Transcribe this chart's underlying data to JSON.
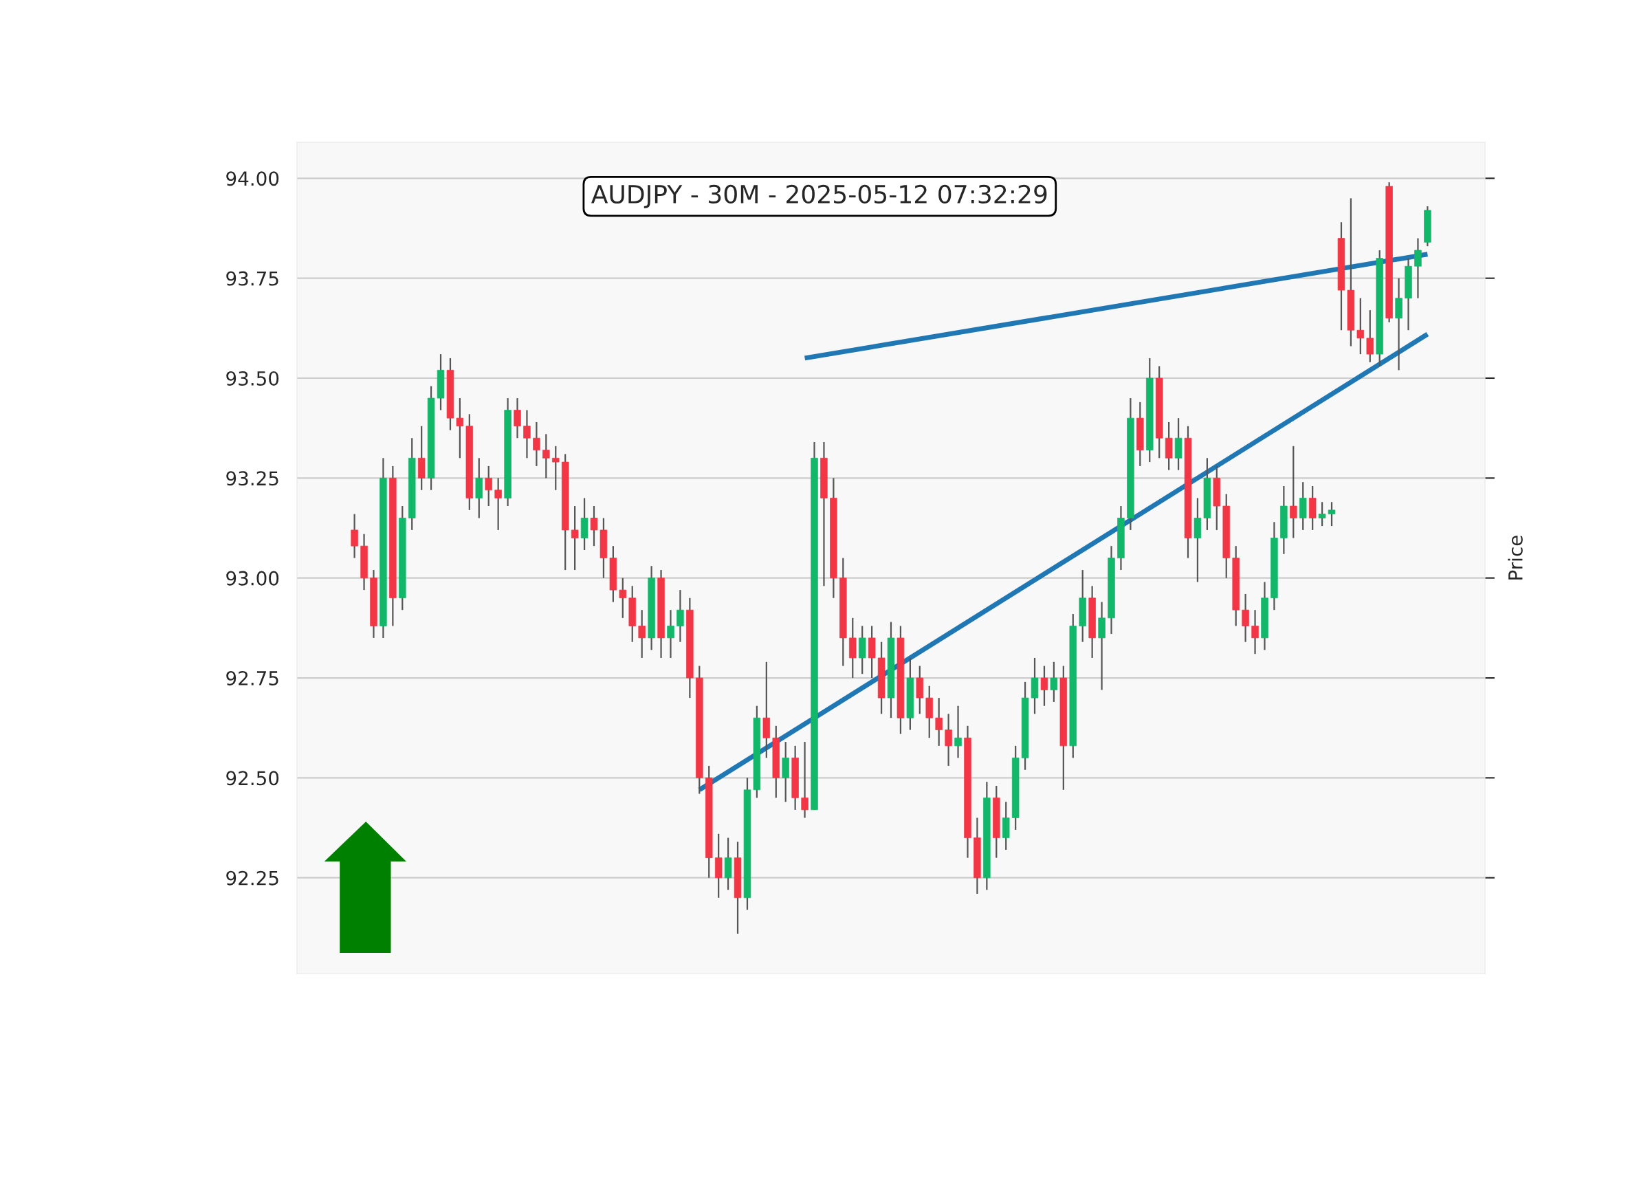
{
  "chart_data": {
    "type": "candlestick",
    "title": "AUDJPY - 30M - 2025-05-12 07:32:29",
    "ylabel": "Price",
    "categories": [
      null,
      null,
      null,
      null,
      null,
      null,
      null,
      null,
      null,
      null,
      null,
      null,
      null,
      null,
      null,
      null,
      null,
      null,
      null,
      null,
      null,
      null,
      null,
      null,
      null,
      null,
      null,
      null,
      null,
      null,
      null,
      null,
      null,
      null,
      null,
      null,
      null,
      null,
      null,
      null,
      null,
      null,
      null,
      null,
      null,
      null,
      null,
      null,
      null,
      null,
      null,
      null,
      null,
      null,
      null,
      null,
      null,
      null,
      null,
      null,
      null,
      null,
      null,
      null,
      null,
      null,
      null,
      null,
      null,
      null,
      null,
      null,
      null,
      null,
      null,
      null,
      null,
      null,
      null,
      null,
      null,
      null,
      null,
      null,
      null,
      null,
      null,
      null,
      null,
      null,
      null,
      null,
      null,
      null,
      null,
      null,
      null,
      null,
      null,
      null,
      null,
      null,
      null,
      null,
      null,
      null,
      null,
      null,
      null,
      null,
      null,
      null,
      null
    ],
    "ohlc": [
      [
        93.12,
        93.16,
        93.05,
        93.08
      ],
      [
        93.08,
        93.11,
        92.97,
        93.0
      ],
      [
        93.0,
        93.02,
        92.85,
        92.88
      ],
      [
        92.88,
        93.3,
        92.85,
        93.25
      ],
      [
        93.25,
        93.28,
        92.88,
        92.95
      ],
      [
        92.95,
        93.18,
        92.92,
        93.15
      ],
      [
        93.15,
        93.35,
        93.12,
        93.3
      ],
      [
        93.3,
        93.38,
        93.22,
        93.25
      ],
      [
        93.25,
        93.48,
        93.22,
        93.45
      ],
      [
        93.45,
        93.56,
        93.42,
        93.52
      ],
      [
        93.52,
        93.55,
        93.37,
        93.4
      ],
      [
        93.4,
        93.45,
        93.3,
        93.38
      ],
      [
        93.38,
        93.41,
        93.17,
        93.2
      ],
      [
        93.2,
        93.3,
        93.15,
        93.25
      ],
      [
        93.25,
        93.28,
        93.18,
        93.22
      ],
      [
        93.22,
        93.25,
        93.12,
        93.2
      ],
      [
        93.2,
        93.45,
        93.18,
        93.42
      ],
      [
        93.42,
        93.45,
        93.35,
        93.38
      ],
      [
        93.38,
        93.42,
        93.3,
        93.35
      ],
      [
        93.35,
        93.39,
        93.28,
        93.32
      ],
      [
        93.32,
        93.36,
        93.25,
        93.3
      ],
      [
        93.3,
        93.33,
        93.22,
        93.29
      ],
      [
        93.29,
        93.31,
        93.02,
        93.12
      ],
      [
        93.12,
        93.18,
        93.02,
        93.1
      ],
      [
        93.1,
        93.2,
        93.07,
        93.15
      ],
      [
        93.15,
        93.18,
        93.08,
        93.12
      ],
      [
        93.12,
        93.15,
        93.0,
        93.05
      ],
      [
        93.05,
        93.08,
        92.94,
        92.97
      ],
      [
        92.97,
        93.0,
        92.9,
        92.95
      ],
      [
        92.95,
        92.98,
        92.84,
        92.88
      ],
      [
        92.88,
        92.92,
        92.8,
        92.85
      ],
      [
        92.85,
        93.03,
        92.82,
        93.0
      ],
      [
        93.0,
        93.02,
        92.8,
        92.85
      ],
      [
        92.85,
        92.92,
        92.8,
        92.88
      ],
      [
        92.88,
        92.97,
        92.84,
        92.92
      ],
      [
        92.92,
        92.95,
        92.7,
        92.75
      ],
      [
        92.75,
        92.78,
        92.46,
        92.5
      ],
      [
        92.5,
        92.53,
        92.25,
        92.3
      ],
      [
        92.3,
        92.36,
        92.2,
        92.25
      ],
      [
        92.25,
        92.35,
        92.22,
        92.3
      ],
      [
        92.3,
        92.34,
        92.11,
        92.2
      ],
      [
        92.2,
        92.5,
        92.17,
        92.47
      ],
      [
        92.47,
        92.68,
        92.45,
        92.65
      ],
      [
        92.65,
        92.79,
        92.55,
        92.6
      ],
      [
        92.6,
        92.63,
        92.45,
        92.5
      ],
      [
        92.5,
        92.59,
        92.44,
        92.55
      ],
      [
        92.55,
        92.58,
        92.42,
        92.45
      ],
      [
        92.45,
        92.59,
        92.4,
        92.42
      ],
      [
        92.42,
        93.34,
        92.42,
        93.3
      ],
      [
        93.3,
        93.34,
        92.98,
        93.2
      ],
      [
        93.2,
        93.25,
        92.95,
        93.0
      ],
      [
        93.0,
        93.05,
        92.78,
        92.85
      ],
      [
        92.85,
        92.9,
        92.75,
        92.8
      ],
      [
        92.8,
        92.88,
        92.76,
        92.85
      ],
      [
        92.85,
        92.88,
        92.75,
        92.8
      ],
      [
        92.8,
        92.84,
        92.66,
        92.7
      ],
      [
        92.7,
        92.89,
        92.65,
        92.85
      ],
      [
        92.85,
        92.88,
        92.61,
        92.65
      ],
      [
        92.65,
        92.8,
        92.62,
        92.75
      ],
      [
        92.75,
        92.78,
        92.66,
        92.7
      ],
      [
        92.7,
        92.73,
        92.6,
        92.65
      ],
      [
        92.65,
        92.7,
        92.58,
        92.62
      ],
      [
        92.62,
        92.66,
        92.53,
        92.58
      ],
      [
        92.58,
        92.68,
        92.55,
        92.6
      ],
      [
        92.6,
        92.63,
        92.3,
        92.35
      ],
      [
        92.35,
        92.4,
        92.21,
        92.25
      ],
      [
        92.25,
        92.49,
        92.22,
        92.45
      ],
      [
        92.45,
        92.48,
        92.3,
        92.35
      ],
      [
        92.35,
        92.44,
        92.32,
        92.4
      ],
      [
        92.4,
        92.58,
        92.37,
        92.55
      ],
      [
        92.55,
        92.74,
        92.52,
        92.7
      ],
      [
        92.7,
        92.8,
        92.66,
        92.75
      ],
      [
        92.75,
        92.78,
        92.68,
        92.72
      ],
      [
        92.72,
        92.79,
        92.69,
        92.75
      ],
      [
        92.75,
        92.78,
        92.47,
        92.58
      ],
      [
        92.58,
        92.91,
        92.55,
        92.88
      ],
      [
        92.88,
        93.02,
        92.84,
        92.95
      ],
      [
        92.95,
        92.98,
        92.8,
        92.85
      ],
      [
        92.85,
        92.94,
        92.72,
        92.9
      ],
      [
        92.9,
        93.08,
        92.86,
        93.05
      ],
      [
        93.05,
        93.18,
        93.02,
        93.15
      ],
      [
        93.15,
        93.45,
        93.12,
        93.4
      ],
      [
        93.4,
        93.44,
        93.28,
        93.32
      ],
      [
        93.32,
        93.55,
        93.29,
        93.5
      ],
      [
        93.5,
        93.53,
        93.3,
        93.35
      ],
      [
        93.35,
        93.39,
        93.27,
        93.3
      ],
      [
        93.3,
        93.4,
        93.27,
        93.35
      ],
      [
        93.35,
        93.38,
        93.05,
        93.1
      ],
      [
        93.1,
        93.2,
        92.99,
        93.15
      ],
      [
        93.15,
        93.3,
        93.12,
        93.25
      ],
      [
        93.25,
        93.28,
        93.12,
        93.18
      ],
      [
        93.18,
        93.21,
        93.0,
        93.05
      ],
      [
        93.05,
        93.08,
        92.88,
        92.92
      ],
      [
        92.92,
        92.96,
        92.84,
        92.88
      ],
      [
        92.88,
        92.92,
        92.81,
        92.85
      ],
      [
        92.85,
        92.99,
        92.82,
        92.95
      ],
      [
        92.95,
        93.14,
        92.92,
        93.1
      ],
      [
        93.1,
        93.23,
        93.06,
        93.18
      ],
      [
        93.18,
        93.33,
        93.1,
        93.15
      ],
      [
        93.15,
        93.24,
        93.12,
        93.2
      ],
      [
        93.2,
        93.23,
        93.12,
        93.15
      ],
      [
        93.15,
        93.19,
        93.13,
        93.16
      ],
      [
        93.16,
        93.19,
        93.13,
        93.17
      ],
      [
        93.85,
        93.89,
        93.62,
        93.72
      ],
      [
        93.72,
        93.95,
        93.58,
        93.62
      ],
      [
        93.62,
        93.7,
        93.56,
        93.6
      ],
      [
        93.6,
        93.67,
        93.54,
        93.56
      ],
      [
        93.56,
        93.82,
        93.53,
        93.8
      ],
      [
        93.98,
        93.99,
        93.64,
        93.65
      ],
      [
        93.65,
        93.75,
        93.52,
        93.7
      ],
      [
        93.7,
        93.8,
        93.62,
        93.78
      ],
      [
        93.78,
        93.85,
        93.7,
        93.82
      ],
      [
        93.84,
        93.93,
        93.83,
        93.92
      ]
    ],
    "colors": [
      "#f23645",
      "#f23645",
      "#f23645",
      "#12b76a",
      "#f23645",
      "#12b76a",
      "#12b76a",
      "#f23645",
      "#12b76a",
      "#12b76a",
      "#f23645",
      "#f23645",
      "#f23645",
      "#12b76a",
      "#f23645",
      "#f23645",
      "#12b76a",
      "#f23645",
      "#f23645",
      "#f23645",
      "#f23645",
      "#f23645",
      "#f23645",
      "#f23645",
      "#12b76a",
      "#f23645",
      "#f23645",
      "#f23645",
      "#f23645",
      "#f23645",
      "#f23645",
      "#12b76a",
      "#f23645",
      "#12b76a",
      "#12b76a",
      "#f23645",
      "#f23645",
      "#f23645",
      "#f23645",
      "#12b76a",
      "#f23645",
      "#12b76a",
      "#12b76a",
      "#f23645",
      "#f23645",
      "#12b76a",
      "#f23645",
      "#f23645",
      "#12b76a",
      "#f23645",
      "#f23645",
      "#f23645",
      "#f23645",
      "#12b76a",
      "#f23645",
      "#f23645",
      "#12b76a",
      "#f23645",
      "#12b76a",
      "#f23645",
      "#f23645",
      "#f23645",
      "#f23645",
      "#12b76a",
      "#f23645",
      "#f23645",
      "#12b76a",
      "#f23645",
      "#12b76a",
      "#12b76a",
      "#12b76a",
      "#12b76a",
      "#f23645",
      "#12b76a",
      "#f23645",
      "#12b76a",
      "#12b76a",
      "#f23645",
      "#12b76a",
      "#12b76a",
      "#12b76a",
      "#12b76a",
      "#f23645",
      "#12b76a",
      "#f23645",
      "#f23645",
      "#12b76a",
      "#f23645",
      "#12b76a",
      "#12b76a",
      "#f23645",
      "#f23645",
      "#f23645",
      "#f23645",
      "#f23645",
      "#12b76a",
      "#12b76a",
      "#12b76a",
      "#f23645",
      "#12b76a",
      "#f23645",
      "#12b76a",
      "#12b76a",
      "#f23645",
      "#f23645",
      "#f23645",
      "#f23645",
      "#12b76a",
      "#f23645",
      "#12b76a",
      "#12b76a",
      "#12b76a",
      "#12b76a"
    ],
    "series": [
      {
        "type": "line",
        "color": "#1f77b4",
        "values": [
          null,
          null,
          null,
          null,
          null,
          null,
          null,
          null,
          null,
          null,
          null,
          null,
          null,
          null,
          null,
          null,
          null,
          null,
          null,
          null,
          null,
          null,
          null,
          null,
          null,
          null,
          null,
          null,
          null,
          null,
          null,
          null,
          null,
          null,
          null,
          null,
          92.47,
          null,
          null,
          null,
          null,
          null,
          null,
          null,
          null,
          null,
          null,
          null,
          null,
          null,
          null,
          null,
          null,
          null,
          null,
          null,
          null,
          null,
          null,
          null,
          null,
          null,
          null,
          null,
          null,
          null,
          null,
          null,
          null,
          null,
          null,
          null,
          null,
          null,
          null,
          null,
          null,
          null,
          null,
          null,
          null,
          null,
          null,
          null,
          null,
          null,
          null,
          null,
          null,
          null,
          null,
          null,
          null,
          null,
          null,
          null,
          null,
          null,
          null,
          null,
          null,
          null,
          null,
          null,
          null,
          null,
          null,
          null,
          null,
          null,
          null,
          null,
          93.61
        ]
      },
      {
        "type": "line",
        "color": "#1f77b4",
        "values": [
          null,
          null,
          null,
          null,
          null,
          null,
          null,
          null,
          null,
          null,
          null,
          null,
          null,
          null,
          null,
          null,
          null,
          null,
          null,
          null,
          null,
          null,
          null,
          null,
          null,
          null,
          null,
          null,
          null,
          null,
          null,
          null,
          null,
          null,
          null,
          null,
          null,
          null,
          null,
          null,
          null,
          null,
          null,
          null,
          null,
          null,
          null,
          93.55,
          null,
          null,
          null,
          null,
          null,
          null,
          null,
          null,
          null,
          null,
          null,
          null,
          null,
          null,
          null,
          null,
          null,
          null,
          null,
          null,
          null,
          null,
          null,
          null,
          null,
          null,
          null,
          null,
          null,
          null,
          null,
          null,
          null,
          null,
          null,
          null,
          null,
          null,
          null,
          null,
          null,
          null,
          null,
          null,
          null,
          null,
          null,
          null,
          null,
          null,
          null,
          null,
          null,
          null,
          null,
          null,
          null,
          null,
          null,
          null,
          null,
          null,
          null,
          null,
          93.81
        ]
      }
    ],
    "ylim": [
      92.01,
      94.09
    ],
    "yticks": [
      {
        "value": 92.25,
        "label": "92.25"
      },
      {
        "value": 92.5,
        "label": "92.50"
      },
      {
        "value": 92.75,
        "label": "92.75"
      },
      {
        "value": 93,
        "label": "93.00"
      },
      {
        "value": 93.25,
        "label": "93.25"
      },
      {
        "value": 93.5,
        "label": "93.50"
      },
      {
        "value": 93.75,
        "label": "93.75"
      },
      {
        "value": 94,
        "label": "94.00"
      }
    ],
    "grid": "y",
    "tick_labels": "y"
  }
}
